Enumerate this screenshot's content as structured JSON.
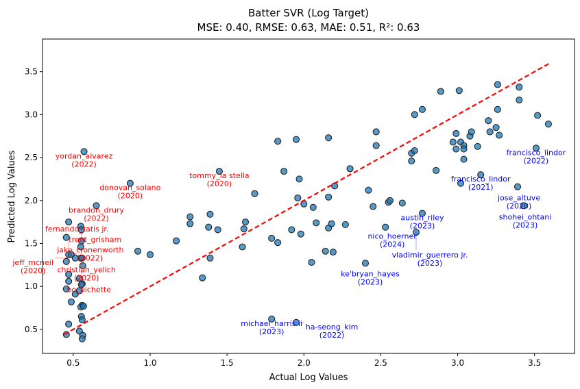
{
  "chart_data": {
    "type": "scatter",
    "title": "Batter SVR (Log Target)",
    "subtitle": "MSE: 0.40, RMSE: 0.63, MAE: 0.51, R²: 0.63",
    "xlabel": "Actual Log Values",
    "ylabel": "Predicted Log Values",
    "xlim": [
      0.3,
      3.76
    ],
    "ylim": [
      0.22,
      3.88
    ],
    "xticks": [
      "0.5",
      "1.0",
      "1.5",
      "2.0",
      "2.5",
      "3.0",
      "3.5"
    ],
    "yticks": [
      "0.5",
      "1.0",
      "1.5",
      "2.0",
      "2.5",
      "3.0",
      "3.5"
    ],
    "grid": false,
    "point_color": "#1f77b4",
    "reference_line": {
      "x": [
        0.44,
        3.6
      ],
      "y": [
        0.44,
        3.6
      ],
      "color": "#ff0000",
      "style": "dashed"
    },
    "points": [
      [
        0.57,
        2.57
      ],
      [
        0.65,
        1.94
      ],
      [
        0.87,
        2.2
      ],
      [
        0.47,
        1.75
      ],
      [
        0.549,
        1.7
      ],
      [
        0.553,
        1.66
      ],
      [
        0.553,
        1.53
      ],
      [
        0.455,
        1.57
      ],
      [
        0.549,
        1.46
      ],
      [
        0.47,
        1.37
      ],
      [
        0.487,
        1.37
      ],
      [
        0.549,
        1.33
      ],
      [
        0.513,
        1.33
      ],
      [
        0.455,
        1.29
      ],
      [
        0.558,
        1.33
      ],
      [
        0.562,
        1.24
      ],
      [
        0.47,
        1.14
      ],
      [
        0.47,
        1.06
      ],
      [
        0.54,
        1.09
      ],
      [
        0.558,
        1.03
      ],
      [
        0.553,
        1.02
      ],
      [
        0.455,
        0.97
      ],
      [
        0.487,
        0.82
      ],
      [
        0.513,
        0.91
      ],
      [
        0.54,
        0.95
      ],
      [
        0.558,
        0.78
      ],
      [
        0.549,
        0.76
      ],
      [
        0.567,
        0.77
      ],
      [
        0.553,
        0.65
      ],
      [
        0.558,
        0.61
      ],
      [
        0.47,
        0.56
      ],
      [
        0.54,
        0.48
      ],
      [
        0.562,
        0.43
      ],
      [
        0.558,
        0.39
      ],
      [
        0.455,
        0.44
      ],
      [
        0.92,
        1.41
      ],
      [
        1.0,
        1.37
      ],
      [
        1.17,
        1.53
      ],
      [
        1.26,
        1.81
      ],
      [
        1.26,
        1.73
      ],
      [
        1.34,
        1.1
      ],
      [
        1.38,
        1.69
      ],
      [
        1.39,
        1.84
      ],
      [
        1.39,
        1.33
      ],
      [
        1.44,
        1.66
      ],
      [
        1.45,
        2.34
      ],
      [
        1.6,
        1.46
      ],
      [
        1.61,
        1.67
      ],
      [
        1.62,
        1.75
      ],
      [
        1.68,
        2.08
      ],
      [
        1.79,
        1.56
      ],
      [
        1.79,
        0.62
      ],
      [
        1.83,
        1.51
      ],
      [
        1.83,
        2.69
      ],
      [
        1.87,
        2.34
      ],
      [
        1.92,
        1.66
      ],
      [
        1.95,
        0.58
      ],
      [
        1.95,
        2.71
      ],
      [
        1.96,
        2.03
      ],
      [
        1.97,
        2.25
      ],
      [
        1.98,
        1.61
      ],
      [
        2.0,
        1.96
      ],
      [
        2.05,
        1.28
      ],
      [
        2.06,
        1.92
      ],
      [
        2.08,
        1.74
      ],
      [
        2.14,
        1.41
      ],
      [
        2.16,
        1.68
      ],
      [
        2.16,
        2.04
      ],
      [
        2.16,
        2.73
      ],
      [
        2.18,
        1.73
      ],
      [
        2.19,
        1.4
      ],
      [
        2.2,
        2.17
      ],
      [
        2.27,
        1.72
      ],
      [
        2.3,
        2.37
      ],
      [
        2.4,
        1.27
      ],
      [
        2.42,
        2.12
      ],
      [
        2.45,
        1.93
      ],
      [
        2.47,
        2.64
      ],
      [
        2.47,
        2.8
      ],
      [
        2.53,
        1.69
      ],
      [
        2.55,
        1.98
      ],
      [
        2.56,
        2.0
      ],
      [
        2.64,
        1.97
      ],
      [
        2.7,
        2.46
      ],
      [
        2.7,
        2.55
      ],
      [
        2.72,
        2.58
      ],
      [
        2.72,
        3.0
      ],
      [
        2.73,
        1.63
      ],
      [
        2.77,
        3.06
      ],
      [
        2.77,
        1.85
      ],
      [
        2.86,
        2.35
      ],
      [
        2.89,
        3.27
      ],
      [
        2.97,
        2.68
      ],
      [
        2.99,
        2.78
      ],
      [
        2.99,
        2.6
      ],
      [
        3.01,
        3.28
      ],
      [
        3.02,
        2.2
      ],
      [
        3.02,
        2.68
      ],
      [
        3.04,
        2.64
      ],
      [
        3.04,
        2.6
      ],
      [
        3.04,
        2.48
      ],
      [
        3.08,
        2.75
      ],
      [
        3.09,
        2.8
      ],
      [
        3.13,
        2.63
      ],
      [
        3.15,
        2.3
      ],
      [
        3.2,
        2.93
      ],
      [
        3.21,
        2.8
      ],
      [
        3.25,
        2.85
      ],
      [
        3.26,
        3.35
      ],
      [
        3.26,
        3.06
      ],
      [
        3.27,
        2.76
      ],
      [
        3.39,
        2.16
      ],
      [
        3.4,
        3.32
      ],
      [
        3.4,
        3.17
      ],
      [
        3.43,
        1.94
      ],
      [
        3.51,
        2.61
      ],
      [
        3.52,
        2.99
      ],
      [
        3.59,
        2.89
      ]
    ],
    "annotations": [
      {
        "name": "yordan_alvarez",
        "year": "(2022)",
        "x": 0.57,
        "y": 2.57,
        "color": "#ff0000"
      },
      {
        "name": "donovan_solano",
        "year": "(2020)",
        "x": 0.87,
        "y": 2.2,
        "color": "#ff0000"
      },
      {
        "name": "brandon_drury",
        "year": "(2022)",
        "x": 0.65,
        "y": 1.94,
        "color": "#ff0000"
      },
      {
        "name": "tommy_la stella",
        "year": "(2020)",
        "x": 1.45,
        "y": 2.34,
        "color": "#ff0000"
      },
      {
        "name": "fernando_tatis jr.",
        "year": "",
        "x": 0.47,
        "y": 1.75,
        "color": "#ff0000"
      },
      {
        "name": "trent_grisham",
        "year": "",
        "x": 0.553,
        "y": 1.7,
        "color": "#ff0000"
      },
      {
        "name": "jake_cronenworth",
        "year": "(2022)",
        "x": 0.553,
        "y": 1.62,
        "color": "#ff0000"
      },
      {
        "name": "christian_yelich",
        "year": "(2020)",
        "x": 0.47,
        "y": 1.53,
        "color": "#ff0000"
      },
      {
        "name": "bo_bichette",
        "year": "",
        "x": 0.553,
        "y": 1.42,
        "color": "#ff0000"
      },
      {
        "name": "jeff_mcneil",
        "year": "(2020)",
        "x": 0.47,
        "y": 1.33,
        "color": "#ff0000"
      },
      {
        "name": "francisco_lindor",
        "year": "(2022)",
        "x": 3.51,
        "y": 2.61,
        "color": "#0000ff"
      },
      {
        "name": "francisco_lindor",
        "year": "(2021)",
        "x": 3.15,
        "y": 2.3,
        "color": "#0000ff"
      },
      {
        "name": "jose_altuve",
        "year": "(2020)",
        "x": 3.39,
        "y": 2.16,
        "color": "#0000ff"
      },
      {
        "name": "shohei_ohtani",
        "year": "(2023)",
        "x": 3.43,
        "y": 1.94,
        "color": "#0000ff"
      },
      {
        "name": "austin_riley",
        "year": "(2023)",
        "x": 2.77,
        "y": 1.85,
        "color": "#0000ff"
      },
      {
        "name": "nico_hoerner",
        "year": "(2024)",
        "x": 2.53,
        "y": 1.69,
        "color": "#0000ff"
      },
      {
        "name": "vladimir_guerrero jr.",
        "year": "(2023)",
        "x": 2.73,
        "y": 1.63,
        "color": "#0000ff"
      },
      {
        "name": "ke'bryan_hayes",
        "year": "(2023)",
        "x": 2.4,
        "y": 1.27,
        "color": "#0000ff"
      },
      {
        "name": "michael_harris ii",
        "year": "(2023)",
        "x": 1.79,
        "y": 0.62,
        "color": "#0000ff"
      },
      {
        "name": "ha-seong_kim",
        "year": "(2022)",
        "x": 1.95,
        "y": 0.58,
        "color": "#0000ff"
      }
    ]
  }
}
